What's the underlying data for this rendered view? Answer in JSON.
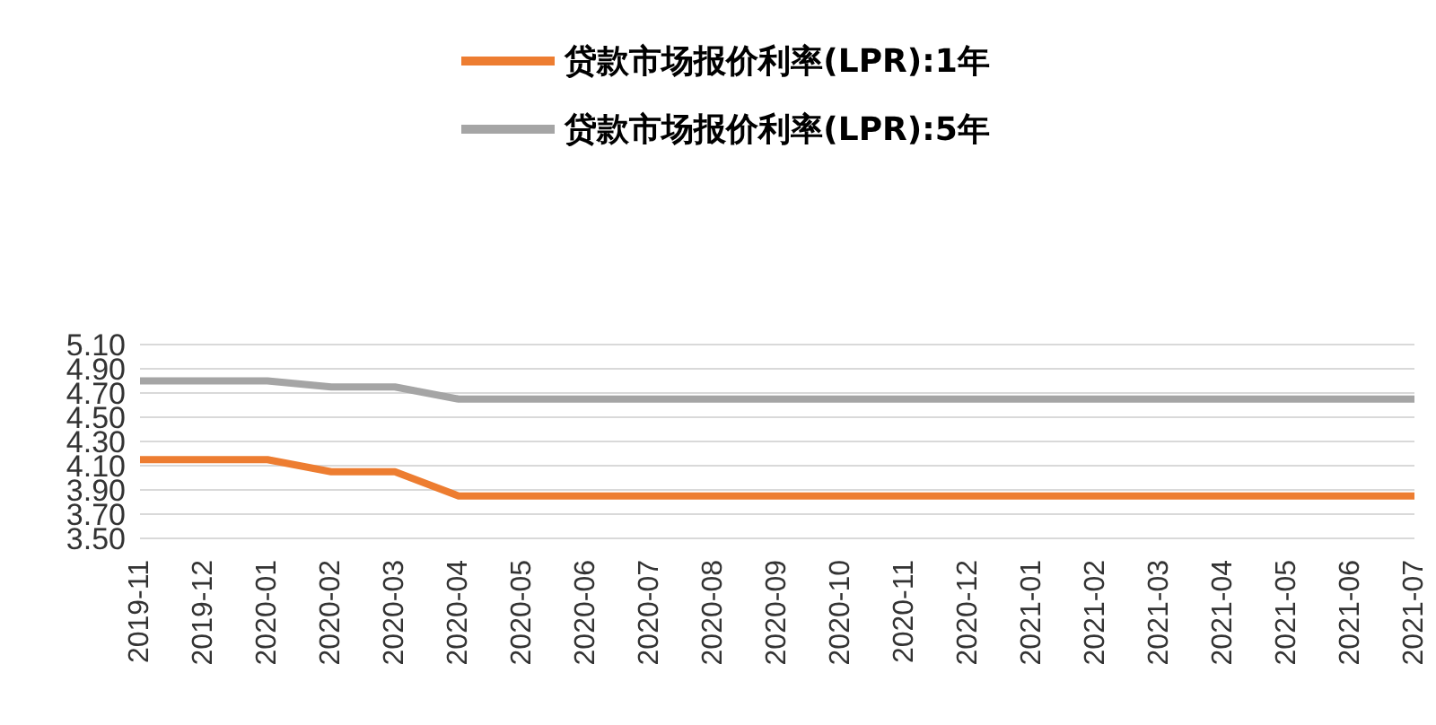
{
  "chart_data": {
    "type": "line",
    "categories": [
      "2019-11",
      "2019-12",
      "2020-01",
      "2020-02",
      "2020-03",
      "2020-04",
      "2020-05",
      "2020-06",
      "2020-07",
      "2020-08",
      "2020-09",
      "2020-10",
      "2020-11",
      "2020-12",
      "2021-01",
      "2021-02",
      "2021-03",
      "2021-04",
      "2021-05",
      "2021-06",
      "2021-07"
    ],
    "series": [
      {
        "name": "贷款市场报价利率(LPR):1年",
        "color": "#ed7d31",
        "values": [
          4.15,
          4.15,
          4.15,
          4.05,
          4.05,
          3.85,
          3.85,
          3.85,
          3.85,
          3.85,
          3.85,
          3.85,
          3.85,
          3.85,
          3.85,
          3.85,
          3.85,
          3.85,
          3.85,
          3.85,
          3.85
        ]
      },
      {
        "name": "贷款市场报价利率(LPR):5年",
        "color": "#a5a5a5",
        "values": [
          4.8,
          4.8,
          4.8,
          4.75,
          4.75,
          4.65,
          4.65,
          4.65,
          4.65,
          4.65,
          4.65,
          4.65,
          4.65,
          4.65,
          4.65,
          4.65,
          4.65,
          4.65,
          4.65,
          4.65,
          4.65
        ]
      }
    ],
    "ylim": [
      3.5,
      5.1
    ],
    "yticks": [
      {
        "value": 3.5,
        "label": "3.50"
      },
      {
        "value": 3.7,
        "label": "3.70"
      },
      {
        "value": 3.9,
        "label": "3.90"
      },
      {
        "value": 4.1,
        "label": "4.10"
      },
      {
        "value": 4.3,
        "label": "4.30"
      },
      {
        "value": 4.5,
        "label": "4.50"
      },
      {
        "value": 4.7,
        "label": "4.70"
      },
      {
        "value": 4.9,
        "label": "4.90"
      },
      {
        "value": 5.1,
        "label": "5.10"
      }
    ],
    "grid": "y",
    "legend": "top",
    "marker": "none",
    "line_style": "solid"
  }
}
